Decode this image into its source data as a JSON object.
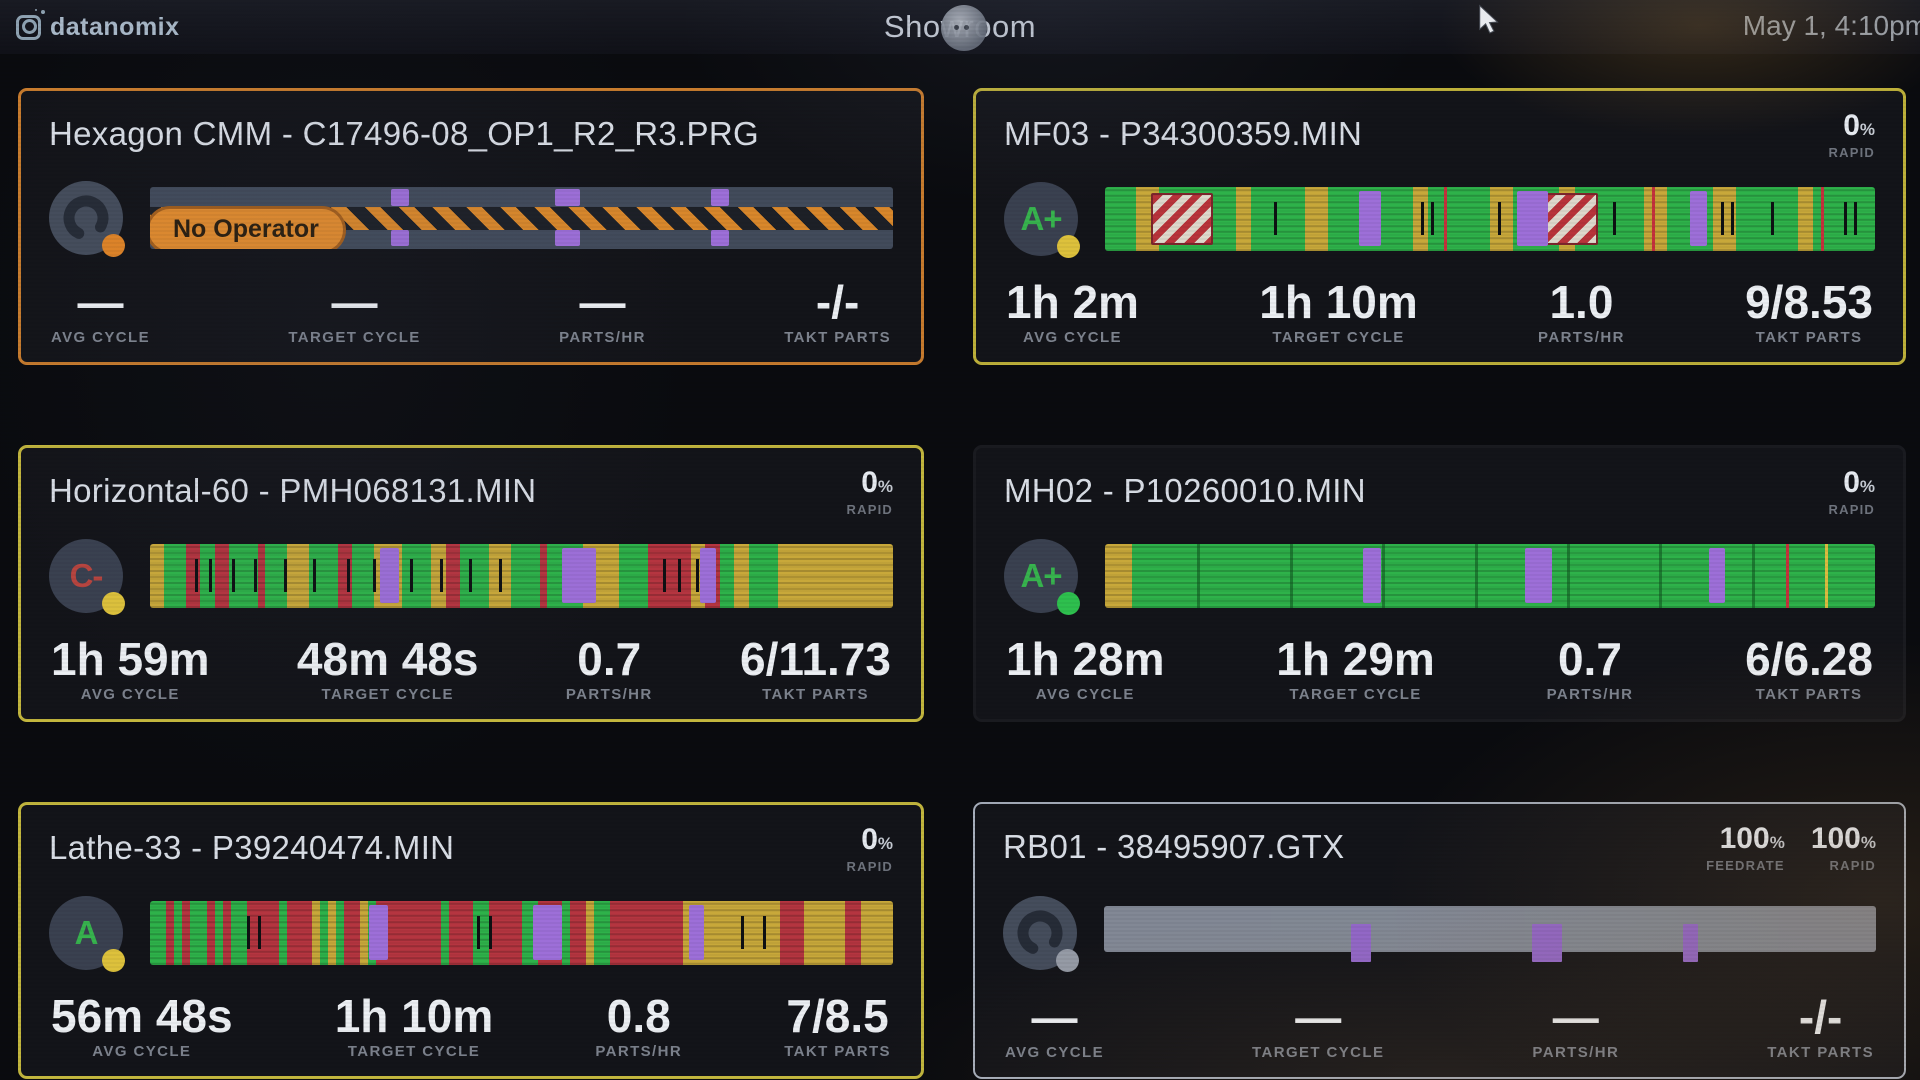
{
  "header": {
    "logo_text": "datanomix",
    "title": "Showroom",
    "datetime": "May 1, 4:10pm"
  },
  "palette": {
    "g": "#2eb24a",
    "y": "#c8a83a",
    "r": "#b53540",
    "k": "#0e1013",
    "dg": "#1f8c38",
    "purple": "#9d6fd8",
    "hazard_orange": "#d8872b",
    "hazard_dark": "#1d2027",
    "barrier_red": "#b8333a",
    "barrier_white": "#ded8cc"
  },
  "tiles": [
    {
      "title": "Hexagon CMM - C17496-08_OP1_R2_R3.PRG",
      "border_color": "#c87c2e",
      "border_width": 3,
      "icon": {
        "type": "gauge",
        "grade": "",
        "grade_color": "",
        "dot_color": "#e08427"
      },
      "badge": "No Operator",
      "meters": [],
      "stats": [
        {
          "value": "—",
          "label": "AVG CYCLE"
        },
        {
          "value": "—",
          "label": "TARGET CYCLE"
        },
        {
          "value": "—",
          "label": "PARTS/HR"
        },
        {
          "value": "-/-",
          "label": "TAKT PARTS"
        }
      ],
      "bar": {
        "kind": "idle",
        "purple_pairs": [
          [
            32.5,
            2.4
          ],
          [
            54.5,
            3.4
          ],
          [
            75.5,
            2.4
          ]
        ]
      }
    },
    {
      "title": "MF03 - P34300359.MIN",
      "border_color": "#beb13a",
      "border_width": 3,
      "icon": {
        "type": "grade",
        "grade": "A+",
        "grade_color": "#37b44e",
        "dot_color": "#ddc13c"
      },
      "badge": "",
      "meters": [
        {
          "value": "0",
          "unit": "%",
          "label": "RAPID"
        }
      ],
      "stats": [
        {
          "value": "1h 2m",
          "label": "AVG CYCLE"
        },
        {
          "value": "1h 10m",
          "label": "TARGET CYCLE"
        },
        {
          "value": "1.0",
          "label": "PARTS/HR"
        },
        {
          "value": "9/8.53",
          "label": "TAKT PARTS"
        }
      ],
      "bar": {
        "kind": "segments",
        "segments": [
          [
            "g",
            4
          ],
          [
            "y",
            3
          ],
          [
            "g",
            10
          ],
          [
            "y",
            2
          ],
          [
            "g",
            7
          ],
          [
            "y",
            3
          ],
          [
            "g",
            11
          ],
          [
            "y",
            2
          ],
          [
            "g",
            8
          ],
          [
            "y",
            3
          ],
          [
            "g",
            6
          ],
          [
            "y",
            2
          ],
          [
            "g",
            9
          ],
          [
            "y",
            3
          ],
          [
            "g",
            6
          ],
          [
            "y",
            3
          ],
          [
            "g",
            8
          ],
          [
            "y",
            2
          ],
          [
            "g",
            8
          ]
        ],
        "barriers": [
          [
            6,
            8
          ],
          [
            57,
            7
          ]
        ],
        "purple": [
          [
            33,
            2.8
          ],
          [
            53.5,
            4
          ],
          [
            76,
            2.2
          ]
        ],
        "ticks": [
          [
            22,
            "k",
            0
          ],
          [
            41,
            "k",
            0
          ],
          [
            42.4,
            "k",
            0
          ],
          [
            51,
            "k",
            0
          ],
          [
            66,
            "k",
            0
          ],
          [
            80,
            "k",
            0
          ],
          [
            81.3,
            "k",
            0
          ],
          [
            86.5,
            "k",
            0
          ],
          [
            96,
            "k",
            0
          ],
          [
            97.3,
            "k",
            0
          ],
          [
            44,
            "r",
            1
          ],
          [
            71,
            "r",
            1
          ],
          [
            93,
            "r",
            1
          ]
        ]
      }
    },
    {
      "title": "Horizontal-60 - PMH068131.MIN",
      "border_color": "#c3b73e",
      "border_width": 3,
      "icon": {
        "type": "grade",
        "grade": "C-",
        "grade_color": "#b8453f",
        "dot_color": "#ddc13c"
      },
      "badge": "",
      "meters": [
        {
          "value": "0",
          "unit": "%",
          "label": "RAPID"
        }
      ],
      "stats": [
        {
          "value": "1h 59m",
          "label": "AVG CYCLE"
        },
        {
          "value": "48m 48s",
          "label": "TARGET CYCLE"
        },
        {
          "value": "0.7",
          "label": "PARTS/HR"
        },
        {
          "value": "6/11.73",
          "label": "TAKT PARTS"
        }
      ],
      "bar": {
        "kind": "segments",
        "segments": [
          [
            "y",
            2
          ],
          [
            "g",
            3
          ],
          [
            "r",
            2
          ],
          [
            "g",
            2
          ],
          [
            "r",
            2
          ],
          [
            "g",
            4
          ],
          [
            "r",
            1
          ],
          [
            "g",
            3
          ],
          [
            "y",
            3
          ],
          [
            "g",
            4
          ],
          [
            "r",
            2
          ],
          [
            "g",
            3
          ],
          [
            "y",
            4
          ],
          [
            "g",
            4
          ],
          [
            "y",
            2
          ],
          [
            "r",
            2
          ],
          [
            "g",
            4
          ],
          [
            "y",
            3
          ],
          [
            "g",
            4
          ],
          [
            "r",
            1
          ],
          [
            "g",
            5
          ],
          [
            "y",
            5
          ],
          [
            "g",
            4
          ],
          [
            "r",
            6
          ],
          [
            "y",
            2
          ],
          [
            "r",
            2
          ],
          [
            "g",
            2
          ],
          [
            "y",
            2
          ],
          [
            "g",
            4
          ],
          [
            "y",
            16
          ]
        ],
        "barriers": [],
        "purple": [
          [
            31,
            2.5
          ],
          [
            55.5,
            4.5
          ],
          [
            74,
            2.2
          ]
        ],
        "ticks": [
          [
            6,
            "k",
            0
          ],
          [
            8,
            "k",
            0
          ],
          [
            11,
            "k",
            0
          ],
          [
            14,
            "k",
            0
          ],
          [
            18,
            "k",
            0
          ],
          [
            22,
            "k",
            0
          ],
          [
            26.5,
            "k",
            0
          ],
          [
            30,
            "k",
            0
          ],
          [
            35,
            "k",
            0
          ],
          [
            39,
            "k",
            0
          ],
          [
            43,
            "k",
            0
          ],
          [
            47,
            "k",
            0
          ],
          [
            56.5,
            "k",
            0
          ],
          [
            58.5,
            "k",
            0
          ],
          [
            69,
            "k",
            0
          ],
          [
            71,
            "k",
            0
          ],
          [
            73.5,
            "k",
            0
          ]
        ]
      }
    },
    {
      "title": "MH02 - P10260010.MIN",
      "border_color": "#1a1b20",
      "border_width": 3,
      "icon": {
        "type": "grade",
        "grade": "A+",
        "grade_color": "#37b44e",
        "dot_color": "#2ec04e"
      },
      "badge": "",
      "meters": [
        {
          "value": "0",
          "unit": "%",
          "label": "RAPID"
        }
      ],
      "stats": [
        {
          "value": "1h 28m",
          "label": "AVG CYCLE"
        },
        {
          "value": "1h 29m",
          "label": "TARGET CYCLE"
        },
        {
          "value": "0.7",
          "label": "PARTS/HR"
        },
        {
          "value": "6/6.28",
          "label": "TAKT PARTS"
        }
      ],
      "bar": {
        "kind": "segments",
        "segments": [
          [
            "y",
            3.5
          ],
          [
            "g",
            96.5
          ]
        ],
        "barriers": [],
        "purple": [
          [
            33.5,
            2.3
          ],
          [
            54.5,
            3.6
          ],
          [
            78.5,
            2
          ]
        ],
        "ticks": [
          [
            12,
            "dg",
            1
          ],
          [
            24,
            "dg",
            1
          ],
          [
            36,
            "dg",
            1
          ],
          [
            48,
            "dg",
            1
          ],
          [
            60,
            "dg",
            1
          ],
          [
            72,
            "dg",
            1
          ],
          [
            84,
            "dg",
            1
          ],
          [
            88.5,
            "r",
            1
          ],
          [
            93.5,
            "y",
            1
          ]
        ]
      }
    },
    {
      "title": "Lathe-33 - P39240474.MIN",
      "border_color": "#c3b73e",
      "border_width": 3,
      "icon": {
        "type": "grade",
        "grade": "A",
        "grade_color": "#37b44e",
        "dot_color": "#ddc13c"
      },
      "badge": "",
      "meters": [
        {
          "value": "0",
          "unit": "%",
          "label": "RAPID"
        }
      ],
      "stats": [
        {
          "value": "56m 48s",
          "label": "AVG CYCLE"
        },
        {
          "value": "1h 10m",
          "label": "TARGET CYCLE"
        },
        {
          "value": "0.8",
          "label": "PARTS/HR"
        },
        {
          "value": "7/8.5",
          "label": "TAKT PARTS"
        }
      ],
      "bar": {
        "kind": "segments",
        "segments": [
          [
            "g",
            2
          ],
          [
            "r",
            1
          ],
          [
            "g",
            1
          ],
          [
            "r",
            1
          ],
          [
            "g",
            2
          ],
          [
            "r",
            1
          ],
          [
            "g",
            1
          ],
          [
            "r",
            1
          ],
          [
            "g",
            2
          ],
          [
            "r",
            4
          ],
          [
            "g",
            1
          ],
          [
            "r",
            3
          ],
          [
            "y",
            1
          ],
          [
            "g",
            1
          ],
          [
            "y",
            1
          ],
          [
            "g",
            1
          ],
          [
            "r",
            2
          ],
          [
            "y",
            1
          ],
          [
            "g",
            1
          ],
          [
            "r",
            8
          ],
          [
            "g",
            1
          ],
          [
            "r",
            3
          ],
          [
            "g",
            2
          ],
          [
            "r",
            4
          ],
          [
            "g",
            2
          ],
          [
            "r",
            3
          ],
          [
            "g",
            1
          ],
          [
            "r",
            2
          ],
          [
            "y",
            1
          ],
          [
            "g",
            2
          ],
          [
            "r",
            5
          ],
          [
            "r",
            4
          ],
          [
            "y",
            7
          ],
          [
            "y",
            2
          ],
          [
            "y",
            3
          ],
          [
            "r",
            3
          ],
          [
            "y",
            5
          ],
          [
            "r",
            2
          ],
          [
            "y",
            4
          ]
        ],
        "barriers": [],
        "purple": [
          [
            29.5,
            2.6
          ],
          [
            51.5,
            4
          ],
          [
            72.5,
            2
          ]
        ],
        "ticks": [
          [
            13,
            "k",
            0
          ],
          [
            14.6,
            "k",
            0
          ],
          [
            44,
            "k",
            0
          ],
          [
            45.6,
            "k",
            0
          ],
          [
            79.5,
            "k",
            0
          ],
          [
            82.5,
            "k",
            0
          ]
        ]
      }
    },
    {
      "title": "RB01 - 38495907.GTX",
      "border_color": "#a8b0bd",
      "border_width": 2,
      "icon": {
        "type": "gauge",
        "grade": "",
        "grade_color": "",
        "dot_color": "#959ba6"
      },
      "badge": "",
      "meters": [
        {
          "value": "100",
          "unit": "%",
          "label": "FEEDRATE"
        },
        {
          "value": "100",
          "unit": "%",
          "label": "RAPID"
        }
      ],
      "stats": [
        {
          "value": "—",
          "label": "AVG CYCLE"
        },
        {
          "value": "—",
          "label": "TARGET CYCLE"
        },
        {
          "value": "—",
          "label": "PARTS/HR"
        },
        {
          "value": "-/-",
          "label": "TAKT PARTS"
        }
      ],
      "bar": {
        "kind": "gray",
        "purple": [
          [
            32,
            2.6
          ],
          [
            55.5,
            3.8
          ],
          [
            75,
            2
          ]
        ]
      }
    }
  ]
}
